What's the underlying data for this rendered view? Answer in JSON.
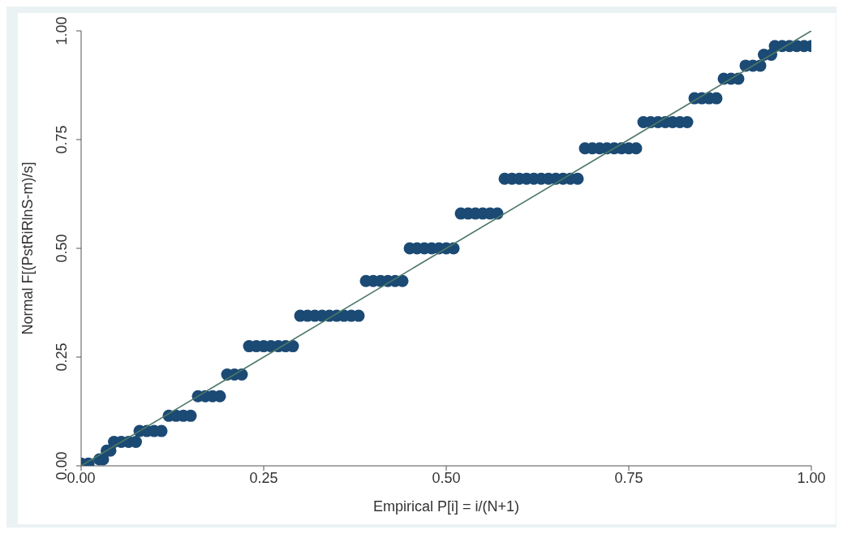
{
  "chart_data": {
    "type": "scatter",
    "xlabel": "Empirical P[i] = i/(N+1)",
    "ylabel": "Normal F[(PstRiRlnS-m)/s]",
    "xlim": [
      0,
      1
    ],
    "ylim": [
      0,
      1
    ],
    "xticks": [
      {
        "value": 0,
        "label": "0.00"
      },
      {
        "value": 0.25,
        "label": "0.25"
      },
      {
        "value": 0.5,
        "label": "0.50"
      },
      {
        "value": 0.75,
        "label": "0.75"
      },
      {
        "value": 1,
        "label": "1.00"
      }
    ],
    "yticks": [
      {
        "value": 0,
        "label": "0.00"
      },
      {
        "value": 0.25,
        "label": "0.25"
      },
      {
        "value": 0.5,
        "label": "0.50"
      },
      {
        "value": 0.75,
        "label": "0.75"
      },
      {
        "value": 1,
        "label": "1.00"
      }
    ],
    "grid": false,
    "series": [
      {
        "color": "#1b4a74",
        "marker": "circle",
        "x": [
          0,
          0.01,
          0.025,
          0.03,
          0.035,
          0.04,
          0.045,
          0.055,
          0.065,
          0.075,
          0.08,
          0.09,
          0.1,
          0.11,
          0.12,
          0.13,
          0.14,
          0.15,
          0.16,
          0.17,
          0.18,
          0.19,
          0.2,
          0.21,
          0.22,
          0.23,
          0.24,
          0.25,
          0.26,
          0.27,
          0.28,
          0.29,
          0.3,
          0.31,
          0.32,
          0.33,
          0.34,
          0.35,
          0.36,
          0.37,
          0.38,
          0.39,
          0.4,
          0.41,
          0.42,
          0.43,
          0.44,
          0.45,
          0.46,
          0.47,
          0.48,
          0.49,
          0.5,
          0.51,
          0.52,
          0.53,
          0.54,
          0.55,
          0.56,
          0.57,
          0.58,
          0.59,
          0.6,
          0.61,
          0.62,
          0.63,
          0.64,
          0.65,
          0.66,
          0.67,
          0.68,
          0.69,
          0.7,
          0.71,
          0.72,
          0.73,
          0.74,
          0.75,
          0.76,
          0.77,
          0.78,
          0.79,
          0.8,
          0.81,
          0.82,
          0.83,
          0.84,
          0.85,
          0.86,
          0.87,
          0.88,
          0.89,
          0.9,
          0.91,
          0.92,
          0.93,
          0.935,
          0.945,
          0.95,
          0.96,
          0.97,
          0.98,
          0.99,
          1
        ],
        "values": [
          0.005,
          0.005,
          0.015,
          0.015,
          0.035,
          0.035,
          0.055,
          0.055,
          0.055,
          0.055,
          0.08,
          0.08,
          0.08,
          0.08,
          0.115,
          0.115,
          0.115,
          0.115,
          0.16,
          0.16,
          0.16,
          0.16,
          0.21,
          0.21,
          0.21,
          0.275,
          0.275,
          0.275,
          0.275,
          0.275,
          0.275,
          0.275,
          0.345,
          0.345,
          0.345,
          0.345,
          0.345,
          0.345,
          0.345,
          0.345,
          0.345,
          0.425,
          0.425,
          0.425,
          0.425,
          0.425,
          0.425,
          0.5,
          0.5,
          0.5,
          0.5,
          0.5,
          0.5,
          0.5,
          0.58,
          0.58,
          0.58,
          0.58,
          0.58,
          0.58,
          0.66,
          0.66,
          0.66,
          0.66,
          0.66,
          0.66,
          0.66,
          0.66,
          0.66,
          0.66,
          0.66,
          0.73,
          0.73,
          0.73,
          0.73,
          0.73,
          0.73,
          0.73,
          0.73,
          0.79,
          0.79,
          0.79,
          0.79,
          0.79,
          0.79,
          0.79,
          0.845,
          0.845,
          0.845,
          0.845,
          0.89,
          0.89,
          0.89,
          0.92,
          0.92,
          0.92,
          0.945,
          0.945,
          0.965,
          0.965,
          0.965,
          0.965,
          0.965,
          0.965
        ]
      },
      {
        "type": "line",
        "color": "#4d7868",
        "marker": "none",
        "line_style": "solid",
        "x": [
          0,
          1
        ],
        "values": [
          0,
          1
        ]
      }
    ]
  }
}
